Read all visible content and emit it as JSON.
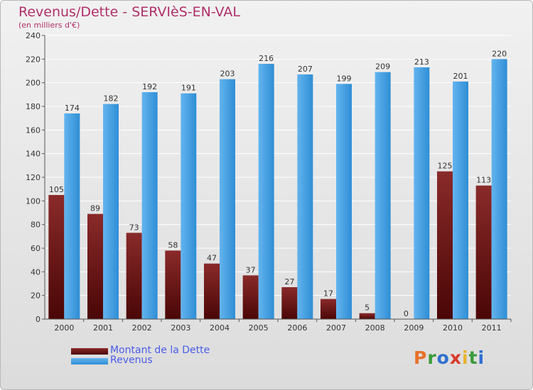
{
  "title": "Revenus/Dette - SERVIèS-EN-VAL",
  "subtitle": "(en milliers d'€)",
  "logo": {
    "letters": [
      "P",
      "r",
      "o",
      "x",
      "i",
      "t",
      "i"
    ],
    "colors": [
      "#e8712b",
      "#3a9a3a",
      "#2f6fd0",
      "#d93a2b",
      "#e8b22b",
      "#3a9a3a",
      "#2f6fd0"
    ]
  },
  "colors": {
    "dette_top": "#8a2a2a",
    "dette_bottom": "#4a0606",
    "revenus_top": "#63b4ee",
    "revenus_bottom": "#2f8ed5",
    "title": "#b0306a",
    "legend_text": "#4a5ee8"
  },
  "chart_data": {
    "type": "bar",
    "categories": [
      "2000",
      "2001",
      "2002",
      "2003",
      "2004",
      "2005",
      "2006",
      "2007",
      "2008",
      "2009",
      "2010",
      "2011"
    ],
    "series": [
      {
        "name": "Montant de la Dette",
        "values": [
          105,
          89,
          73,
          58,
          47,
          37,
          27,
          17,
          5,
          0,
          125,
          113
        ]
      },
      {
        "name": "Revenus",
        "values": [
          174,
          182,
          192,
          191,
          203,
          216,
          207,
          199,
          209,
          213,
          201,
          220
        ]
      }
    ],
    "ylim": [
      0,
      240
    ],
    "yticks": [
      0,
      20,
      40,
      60,
      80,
      100,
      120,
      140,
      160,
      180,
      200,
      220,
      240
    ],
    "grid": true,
    "legend": "bottom-left"
  }
}
